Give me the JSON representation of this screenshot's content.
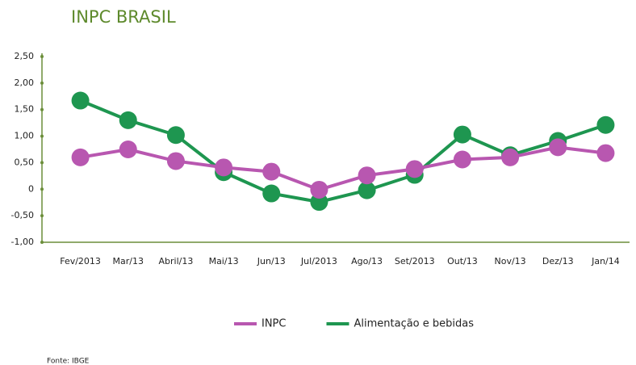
{
  "chart_data": {
    "type": "line",
    "title": "INPC BRASIL",
    "categories": [
      "Fev/2013",
      "Mar/13",
      "Abril/13",
      "Mai/13",
      "Jun/13",
      "Jul/2013",
      "Ago/13",
      "Set/2013",
      "Out/13",
      "Nov/13",
      "Dez/13",
      "Jan/14"
    ],
    "series": [
      {
        "name": "INPC",
        "color": "#b857b0",
        "values": [
          0.6,
          0.75,
          0.53,
          0.41,
          0.33,
          -0.01,
          0.26,
          0.38,
          0.56,
          0.6,
          0.79,
          0.68
        ]
      },
      {
        "name": "Alimentação e bebidas",
        "color": "#1e9650",
        "values": [
          1.67,
          1.3,
          1.02,
          0.32,
          -0.08,
          -0.24,
          -0.02,
          0.27,
          1.03,
          0.64,
          0.91,
          1.21
        ]
      }
    ],
    "ylim": [
      -1,
      2.5
    ],
    "yticks": [
      {
        "value": -1,
        "label": "-1,00"
      },
      {
        "value": -0.5,
        "label": "-0,50"
      },
      0,
      {
        "value": 0.5,
        "label": "0,50"
      },
      {
        "value": 1,
        "label": "1,00"
      },
      {
        "value": 1.5,
        "label": "1,50"
      },
      {
        "value": 2,
        "label": "2,00"
      },
      {
        "value": 2.5,
        "label": "2,50"
      }
    ],
    "legend": "bottom",
    "source": "Fonte: IBGE"
  }
}
